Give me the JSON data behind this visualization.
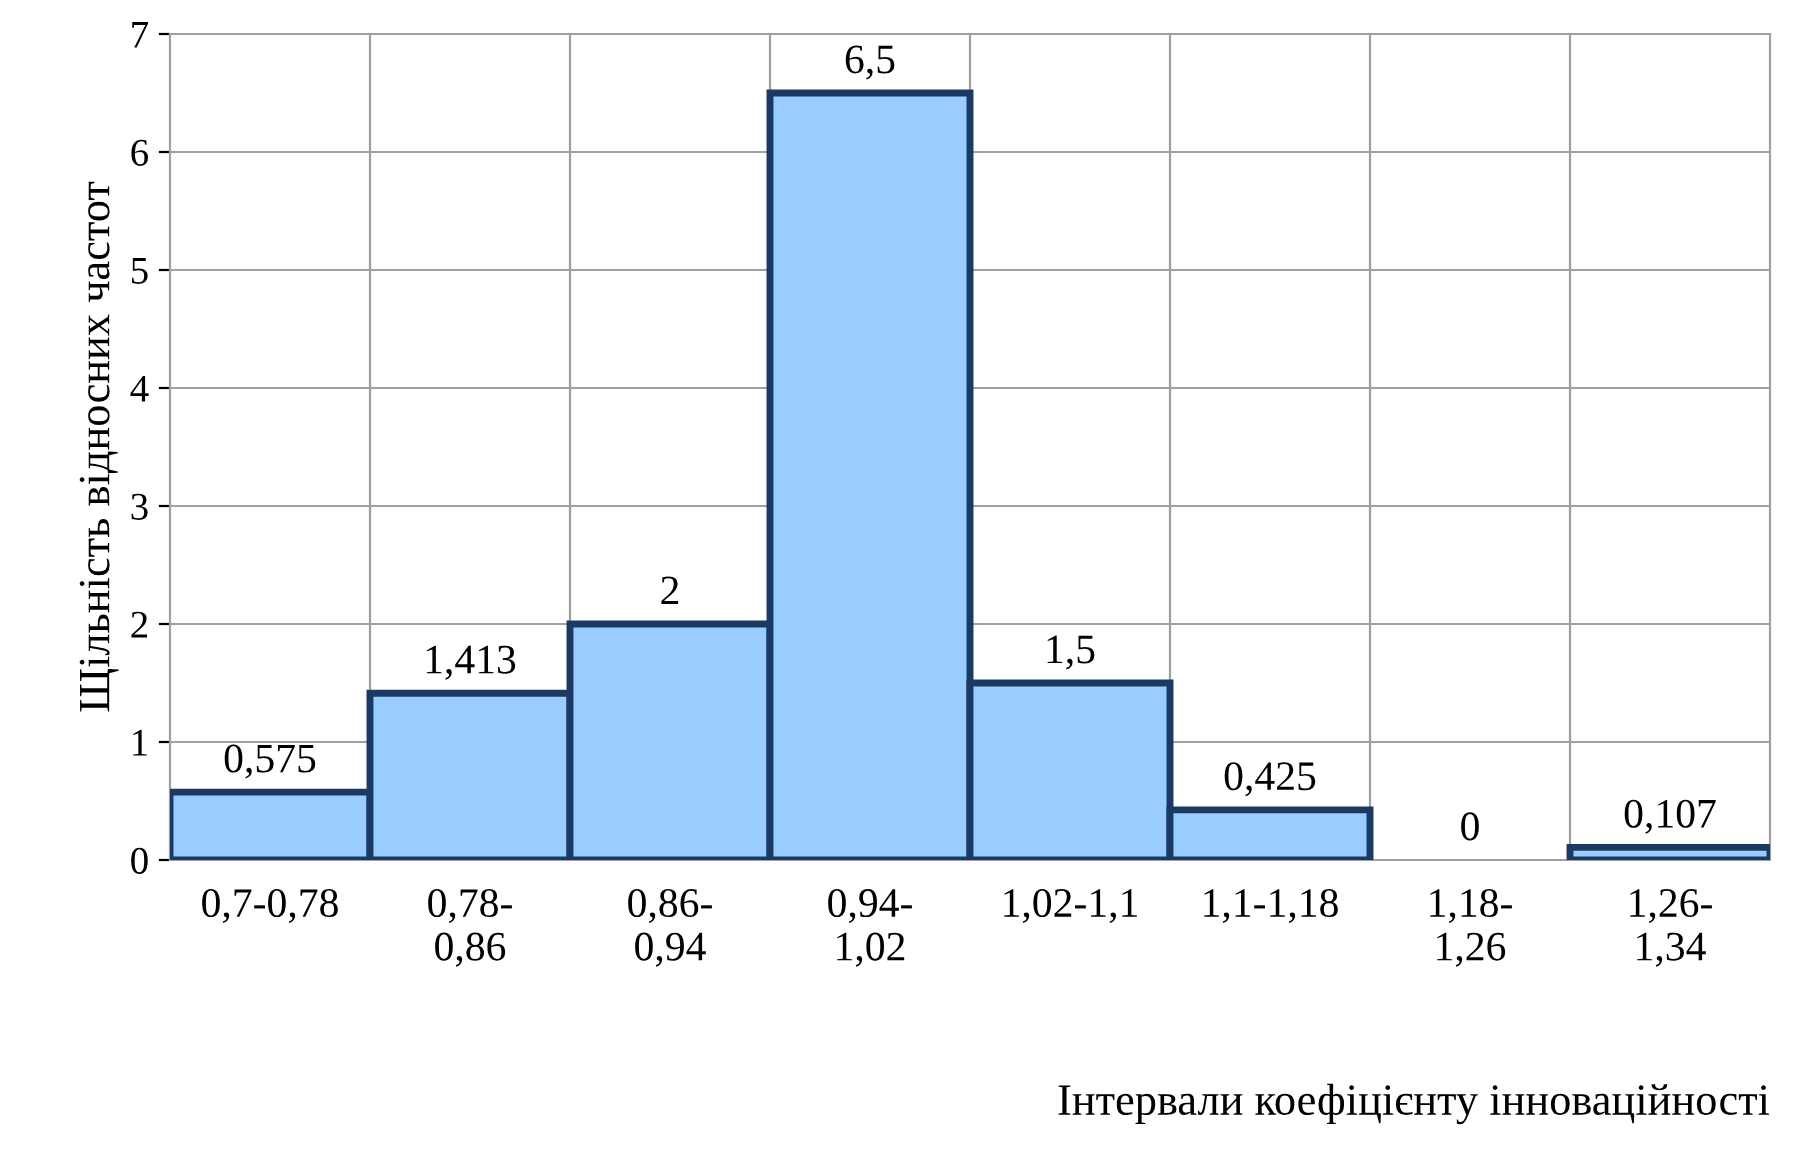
{
  "chart_data": {
    "type": "bar",
    "xlabel": "Інтервали коефіцієнту інноваційності",
    "ylabel": "Щільність відносних частот",
    "categories": [
      "0,7-0,78",
      "0,78-\n0,86",
      "0,86-\n0,94",
      "0,94-\n1,02",
      "1,02-1,1",
      "1,1-1,18",
      "1,18-\n1,26",
      "1,26-\n1,34"
    ],
    "values": [
      0.575,
      1.413,
      2,
      6.5,
      1.5,
      0.425,
      0,
      0.107
    ],
    "value_labels": [
      "0,575",
      "1,413",
      "2",
      "6,5",
      "1,5",
      "0,425",
      "0",
      "0,107"
    ],
    "color": "#99ccff",
    "ylim": [
      0,
      7
    ],
    "yticks": [
      0,
      1,
      2,
      3,
      4,
      5,
      6,
      7
    ],
    "grid": true
  }
}
